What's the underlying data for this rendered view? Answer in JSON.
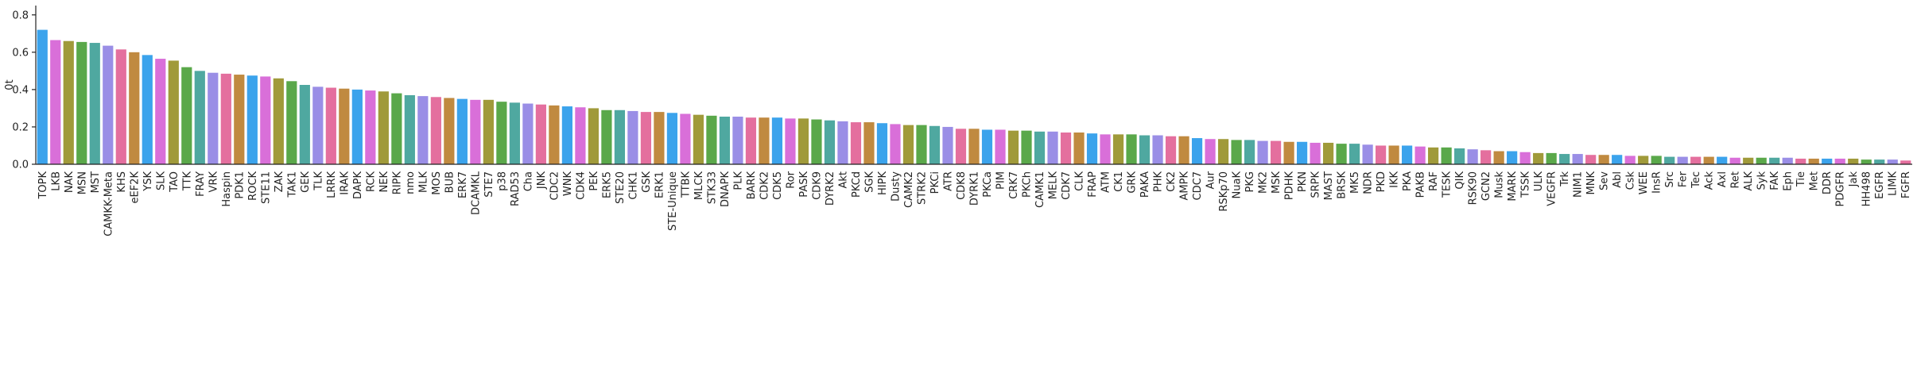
{
  "chart_data": {
    "type": "bar",
    "y_label": "0t",
    "categories": [
      "TOPK",
      "LKB",
      "NAK",
      "MSN",
      "MST",
      "CAMKK-Meta",
      "KHS",
      "eEF2K",
      "YSK",
      "SLK",
      "TAO",
      "TTK",
      "FRAY",
      "VRK",
      "Haspin",
      "PDK1",
      "ROCK",
      "STE11",
      "ZAK",
      "TAK1",
      "GEK",
      "TLK",
      "LRRK",
      "IRAK",
      "DAPK",
      "RCK",
      "NEK",
      "RIPK",
      "nmo",
      "MLK",
      "MOS",
      "BUB",
      "ERK7",
      "DCAMKL",
      "STE7",
      "p38",
      "RAD53",
      "Cha",
      "JNK",
      "CDC2",
      "WNK",
      "CDK4",
      "PEK",
      "ERK5",
      "STE20",
      "CHK1",
      "GSK",
      "ERK1",
      "STE-Unique",
      "TTBK",
      "MLCK",
      "STK33",
      "DNAPK",
      "PLK",
      "BARK",
      "CDK2",
      "CDK5",
      "Ror",
      "PASK",
      "CDK9",
      "DYRK2",
      "Akt",
      "PKCd",
      "SGK",
      "HIPK",
      "Dusty",
      "CAMK2",
      "STRK2",
      "PKCi",
      "ATR",
      "CDK8",
      "DYRK1",
      "PKCa",
      "PIM",
      "CRK7",
      "PKCh",
      "CAMK1",
      "MELK",
      "CDK7",
      "CLK",
      "FRAP",
      "ATM",
      "CK1",
      "GRK",
      "PAKA",
      "PHK",
      "CK2",
      "AMPK",
      "CDC7",
      "Aur",
      "RSKp70",
      "NuaK",
      "PKG",
      "MK2",
      "MSK",
      "PDHK",
      "PKN",
      "SRPK",
      "MAST",
      "BRSK",
      "MK5",
      "NDR",
      "PKD",
      "IKK",
      "PKA",
      "PAKB",
      "RAF",
      "TESK",
      "QIK",
      "RSK90",
      "GCN2",
      "Musk",
      "MARK",
      "TSSK",
      "ULK",
      "VEGFR",
      "Trk",
      "NIM1",
      "MNK",
      "Sev",
      "Abl",
      "Csk",
      "WEE",
      "InsR",
      "Src",
      "Fer",
      "Tec",
      "Ack",
      "Axl",
      "Ret",
      "ALK",
      "Syk",
      "FAK",
      "Eph",
      "Tie",
      "Met",
      "DDR",
      "PDGFR",
      "Jak",
      "HH498",
      "EGFR",
      "LIMK",
      "FGFR"
    ],
    "values": [
      0.72,
      0.665,
      0.66,
      0.655,
      0.65,
      0.635,
      0.615,
      0.6,
      0.585,
      0.565,
      0.555,
      0.52,
      0.5,
      0.49,
      0.485,
      0.48,
      0.475,
      0.47,
      0.46,
      0.445,
      0.425,
      0.415,
      0.41,
      0.405,
      0.4,
      0.395,
      0.39,
      0.38,
      0.37,
      0.365,
      0.36,
      0.355,
      0.35,
      0.345,
      0.345,
      0.335,
      0.33,
      0.325,
      0.32,
      0.315,
      0.31,
      0.305,
      0.3,
      0.29,
      0.29,
      0.285,
      0.28,
      0.28,
      0.275,
      0.27,
      0.265,
      0.26,
      0.255,
      0.255,
      0.25,
      0.25,
      0.25,
      0.245,
      0.245,
      0.24,
      0.235,
      0.23,
      0.225,
      0.225,
      0.22,
      0.215,
      0.21,
      0.21,
      0.205,
      0.2,
      0.19,
      0.19,
      0.185,
      0.185,
      0.18,
      0.18,
      0.175,
      0.175,
      0.17,
      0.17,
      0.165,
      0.16,
      0.16,
      0.16,
      0.155,
      0.155,
      0.15,
      0.15,
      0.14,
      0.135,
      0.135,
      0.13,
      0.13,
      0.125,
      0.125,
      0.12,
      0.12,
      0.115,
      0.115,
      0.11,
      0.11,
      0.105,
      0.1,
      0.1,
      0.1,
      0.095,
      0.09,
      0.09,
      0.085,
      0.08,
      0.075,
      0.07,
      0.07,
      0.065,
      0.06,
      0.06,
      0.055,
      0.055,
      0.05,
      0.05,
      0.05,
      0.045,
      0.045,
      0.045,
      0.04,
      0.04,
      0.04,
      0.04,
      0.04,
      0.035,
      0.035,
      0.035,
      0.035,
      0.035,
      0.03,
      0.03,
      0.03,
      0.03,
      0.03,
      0.025,
      0.025,
      0.025,
      0.02
    ],
    "palette": [
      "#3ba3ec",
      "#d96fd9",
      "#a09a3a",
      "#5aa84a",
      "#4fa8a0",
      "#9a8ee6",
      "#e46f9e",
      "#c08a40"
    ],
    "ylim": [
      0,
      0.85
    ],
    "yticks": [
      {
        "value": 0,
        "label": "0.0"
      },
      0.2,
      0.4,
      0.6,
      0.8
    ],
    "grid": false
  }
}
